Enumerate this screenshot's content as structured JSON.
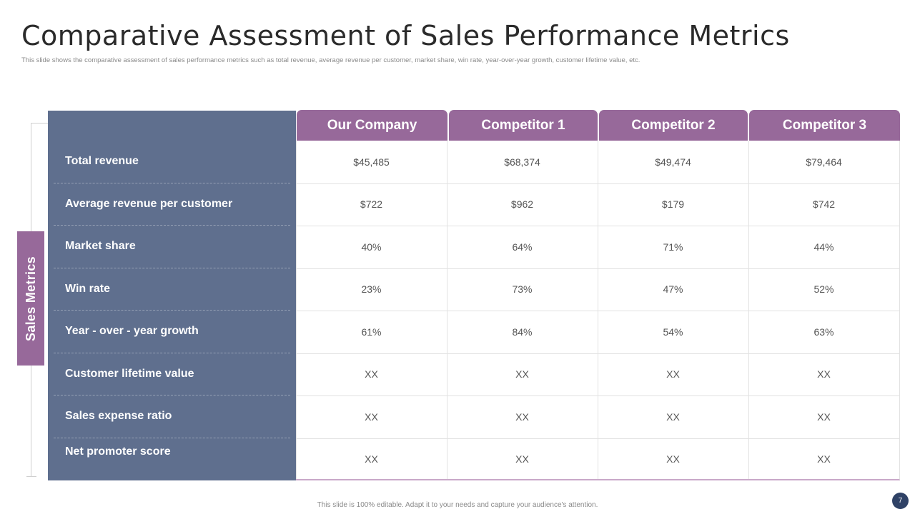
{
  "slide": {
    "title": "Comparative Assessment of Sales Performance Metrics",
    "subtitle": "This slide shows the comparative assessment of sales performance metrics such as total revenue, average revenue per customer, market share, win rate, year-over-year growth, customer lifetime value, etc.",
    "side_label": "Sales Metrics",
    "footer": "This slide is 100% editable. Adapt it to your needs and capture your audience's attention.",
    "page_number": "7"
  },
  "colors": {
    "accent_purple": "#97699a",
    "panel_slate": "#5f6f8e",
    "page_badge": "#2f4266"
  },
  "table": {
    "columns": [
      "Our Company",
      "Competitor 1",
      "Competitor 2",
      "Competitor 3"
    ],
    "rows": [
      {
        "metric": "Total revenue",
        "values": [
          "$45,485",
          "$68,374",
          "$49,474",
          "$79,464"
        ]
      },
      {
        "metric": "Average revenue per customer",
        "values": [
          "$722",
          "$962",
          "$179",
          "$742"
        ]
      },
      {
        "metric": "Market share",
        "values": [
          "40%",
          "64%",
          "71%",
          "44%"
        ]
      },
      {
        "metric": "Win rate",
        "values": [
          "23%",
          "73%",
          "47%",
          "52%"
        ]
      },
      {
        "metric": "Year - over - year growth",
        "values": [
          "61%",
          "84%",
          "54%",
          "63%"
        ]
      },
      {
        "metric": "Customer lifetime value",
        "values": [
          "XX",
          "XX",
          "XX",
          "XX"
        ]
      },
      {
        "metric": "Sales expense ratio",
        "values": [
          "XX",
          "XX",
          "XX",
          "XX"
        ]
      },
      {
        "metric": "Net promoter score",
        "values": [
          "XX",
          "XX",
          "XX",
          "XX"
        ]
      }
    ]
  }
}
